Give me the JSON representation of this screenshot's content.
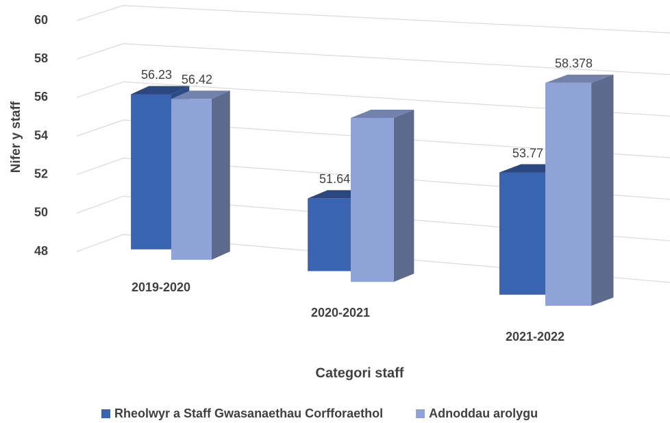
{
  "chart_data": {
    "type": "bar3d",
    "y_axis_label": "Nifer y staff",
    "x_axis_label": "Categori staff",
    "categories": [
      "2019-2020",
      "2020-2021",
      "2021-2022"
    ],
    "series": [
      {
        "name": "Rheolwyr a Staff Gwasanaethau Corfforaethol",
        "color": "#3a63b0",
        "values": [
          56.23,
          51.64,
          53.77
        ],
        "value_labels": [
          "56.23",
          "51.64",
          "53.77"
        ]
      },
      {
        "name": "Adnoddau arolygu",
        "color": "#8fa3d8",
        "values": [
          56.42,
          56.1,
          58.378
        ],
        "value_labels": [
          "56.42",
          null,
          "58.378"
        ]
      }
    ],
    "ylim": [
      48,
      60
    ],
    "yticks": [
      48,
      50,
      52,
      54,
      56,
      58,
      60
    ],
    "grid": true,
    "legend": "bottom"
  }
}
